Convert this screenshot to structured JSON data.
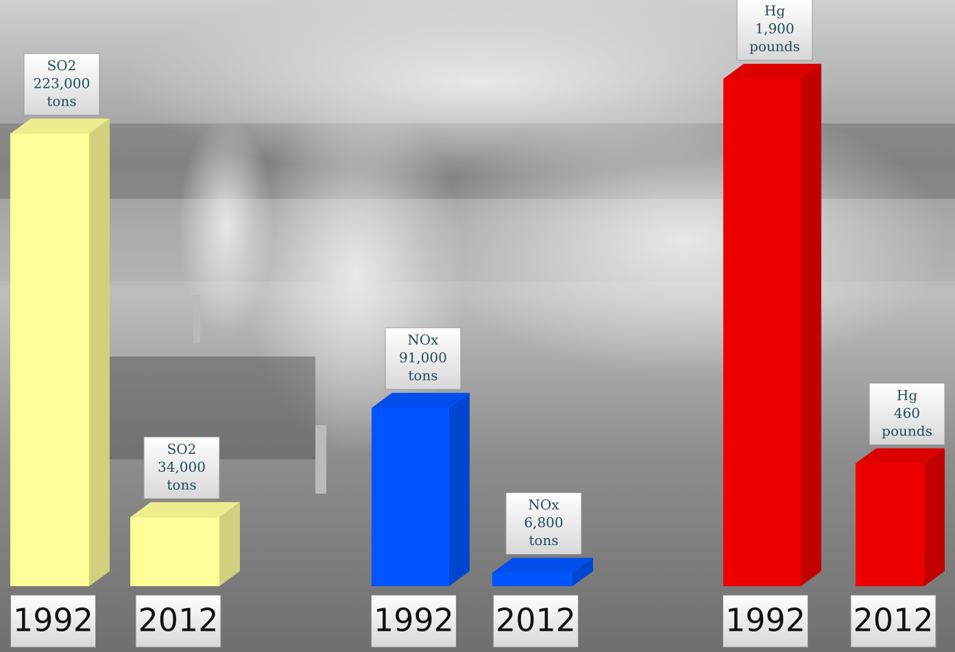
{
  "chart_data": [
    {
      "type": "bar",
      "categories": [
        "1992",
        "2012"
      ],
      "unit": "tons",
      "series": [
        {
          "name": "SO2",
          "color": "#ffff99",
          "values": [
            223000,
            34000
          ],
          "value_labels": [
            "223,000",
            "34,000"
          ]
        }
      ]
    },
    {
      "type": "bar",
      "categories": [
        "1992",
        "2012"
      ],
      "unit": "tons",
      "series": [
        {
          "name": "NOx",
          "color": "#0055ff",
          "values": [
            91000,
            6800
          ],
          "value_labels": [
            "91,000",
            "6,800"
          ]
        }
      ]
    },
    {
      "type": "bar",
      "categories": [
        "1992",
        "2012"
      ],
      "unit": "pounds",
      "series": [
        {
          "name": "Hg",
          "color": "#ee0000",
          "values": [
            1900,
            460
          ],
          "value_labels": [
            "1,900",
            "460"
          ]
        }
      ]
    }
  ]
}
